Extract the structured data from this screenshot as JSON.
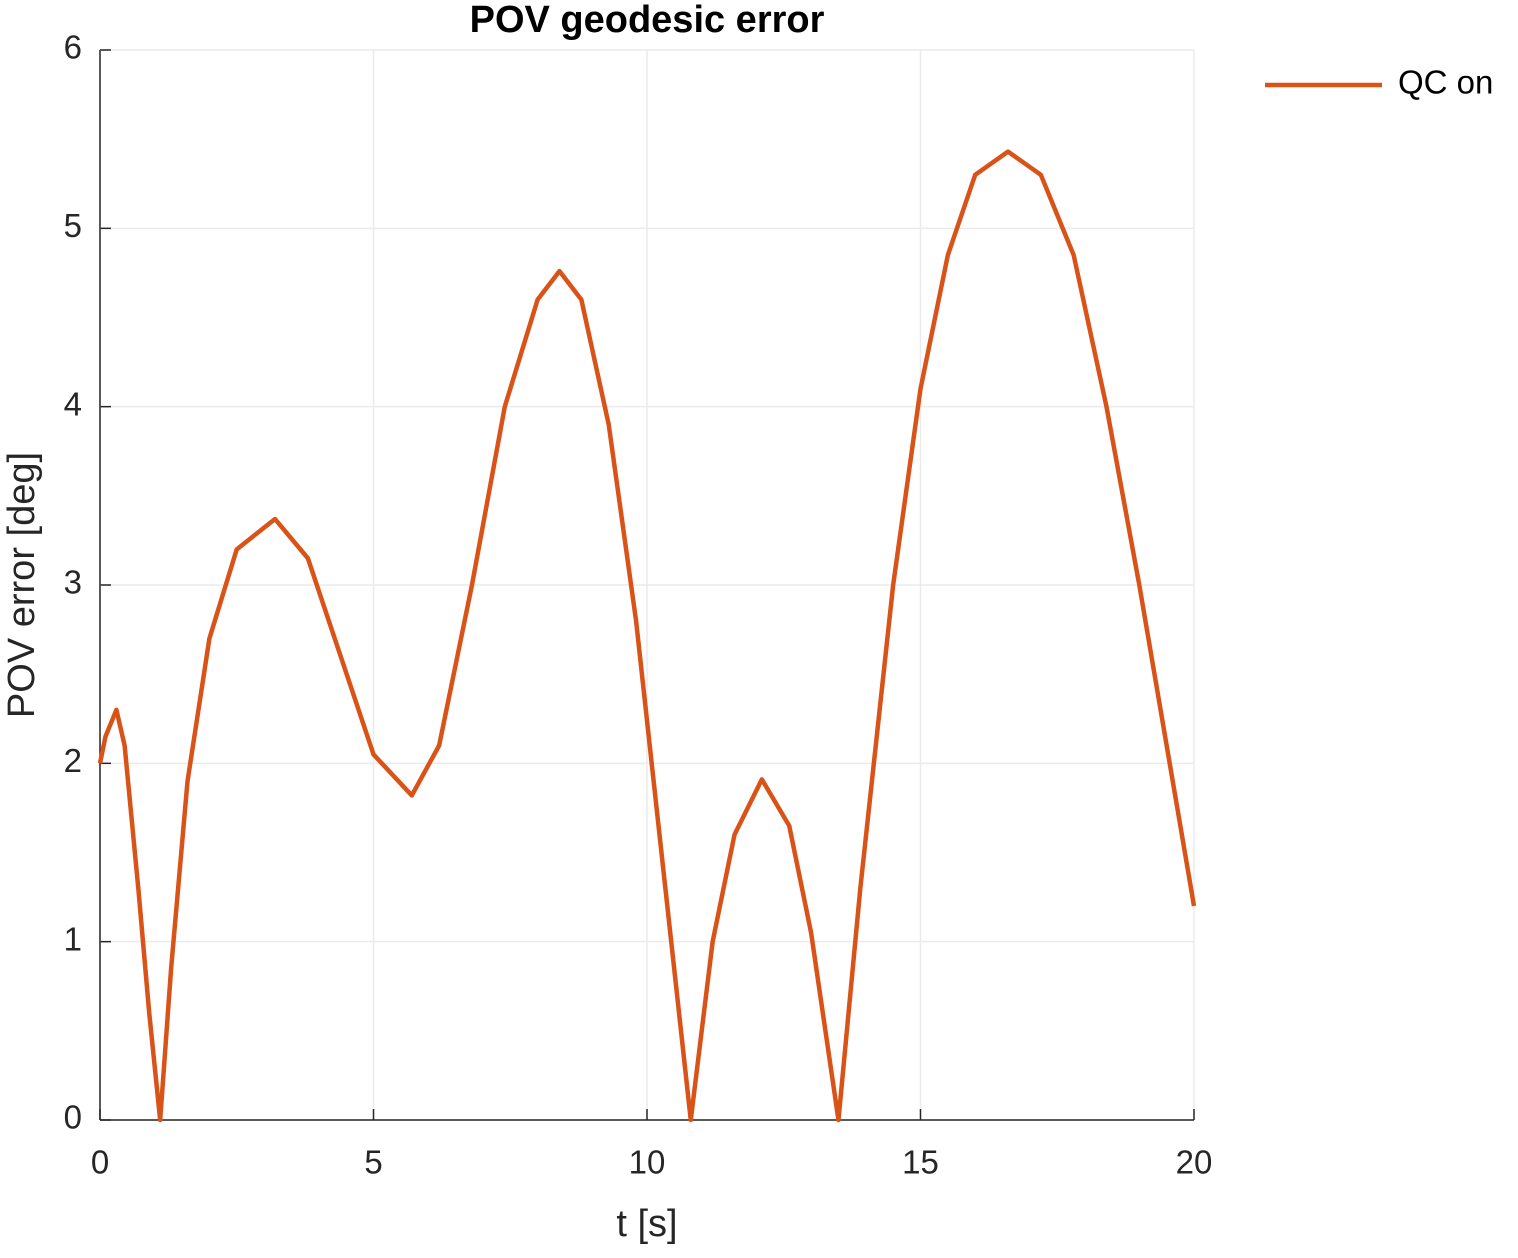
{
  "chart_data": {
    "type": "line",
    "title": "POV geodesic error",
    "xlabel": "t [s]",
    "ylabel": "POV error [deg]",
    "xlim": [
      0,
      20
    ],
    "ylim": [
      0,
      6
    ],
    "xticks": [
      0,
      5,
      10,
      15,
      20
    ],
    "yticks": [
      0,
      1,
      2,
      3,
      4,
      5,
      6
    ],
    "grid": true,
    "legend": "outside-upper-right",
    "x": [
      0,
      0.1,
      0.3,
      0.45,
      0.7,
      0.9,
      1.1,
      1.3,
      1.6,
      2.0,
      2.5,
      3.2,
      3.8,
      4.4,
      5.0,
      5.7,
      6.2,
      6.8,
      7.4,
      8.0,
      8.4,
      8.8,
      9.3,
      9.8,
      10.3,
      10.8,
      11.2,
      11.6,
      12.1,
      12.6,
      13.0,
      13.5,
      13.9,
      14.5,
      15.0,
      15.5,
      16.0,
      16.6,
      17.2,
      17.8,
      18.4,
      19.0,
      19.5,
      20.0
    ],
    "series": [
      {
        "name": "QC on",
        "color": "#d95319",
        "values": [
          2.0,
          2.15,
          2.3,
          2.1,
          1.3,
          0.6,
          0.0,
          0.85,
          1.9,
          2.7,
          3.2,
          3.37,
          3.15,
          2.6,
          2.05,
          1.82,
          2.1,
          3.0,
          4.0,
          4.6,
          4.76,
          4.6,
          3.9,
          2.8,
          1.4,
          0.0,
          1.0,
          1.6,
          1.91,
          1.65,
          1.05,
          0.0,
          1.3,
          3.0,
          4.1,
          4.85,
          5.3,
          5.43,
          5.3,
          4.85,
          4.0,
          3.0,
          2.1,
          1.2
        ]
      }
    ]
  }
}
